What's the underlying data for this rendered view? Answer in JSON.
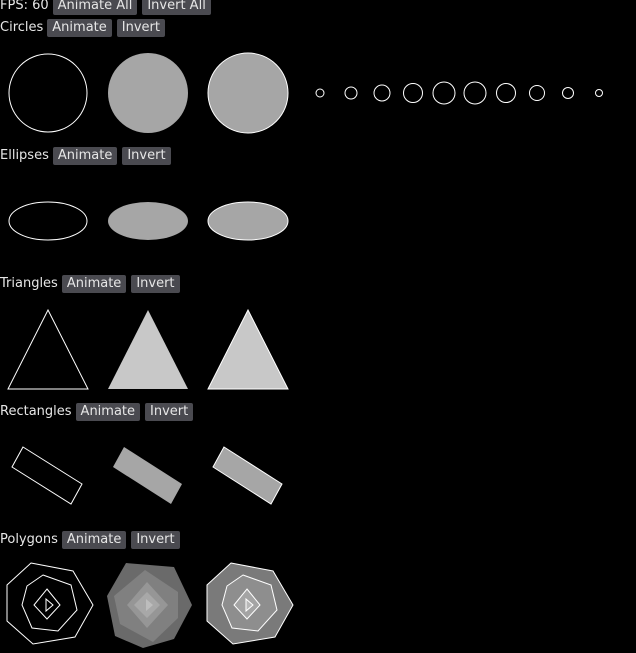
{
  "toolbar": {
    "fps_label": "FPS: 60",
    "animate_all": "Animate All",
    "invert_all": "Invert All"
  },
  "sections": {
    "circles": {
      "label": "Circles",
      "animate": "Animate",
      "invert": "Invert"
    },
    "ellipses": {
      "label": "Ellipses",
      "animate": "Animate",
      "invert": "Invert"
    },
    "triangles": {
      "label": "Triangles",
      "animate": "Animate",
      "invert": "Invert"
    },
    "rectangles": {
      "label": "Rectangles",
      "animate": "Animate",
      "invert": "Invert"
    },
    "polygons": {
      "label": "Polygons",
      "animate": "Animate",
      "invert": "Invert"
    }
  },
  "colors": {
    "background": "#000000",
    "button_bg": "#4a4a50",
    "text": "#e6e6e6",
    "outline": "#ffffff",
    "fill_gray": "#a6a6a6",
    "fill_light": "#c8c8c8"
  }
}
